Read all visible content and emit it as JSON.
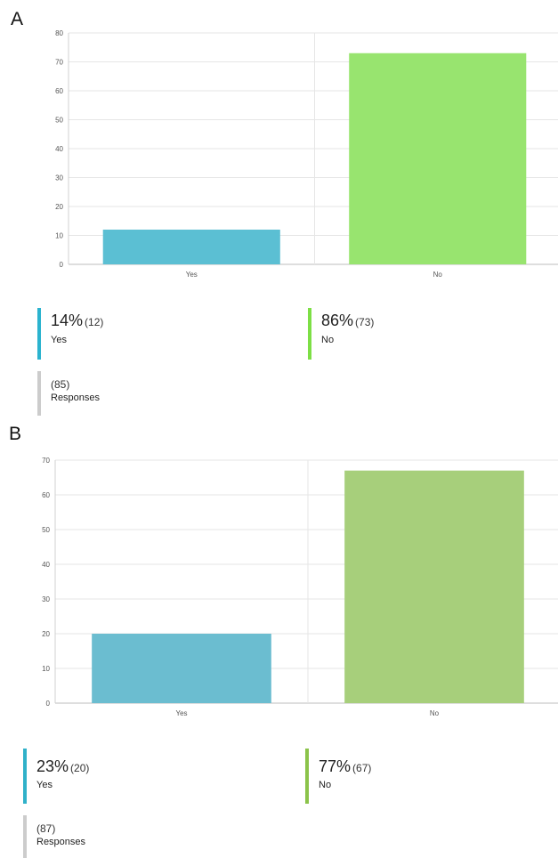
{
  "panels": [
    {
      "letter": "A",
      "stats": [
        {
          "percent": "14%",
          "count": "(12)",
          "label": "Yes",
          "color": "#2bb3cf"
        },
        {
          "percent": "86%",
          "count": "(73)",
          "label": "No",
          "color": "#7ddf45"
        }
      ],
      "responses": {
        "count": "(85)",
        "label": "Responses",
        "color": "#cccccc"
      }
    },
    {
      "letter": "B",
      "stats": [
        {
          "percent": "23%",
          "count": "(20)",
          "label": "Yes",
          "color": "#2fb1c9"
        },
        {
          "percent": "77%",
          "count": "(67)",
          "label": "No",
          "color": "#8bc34a"
        }
      ],
      "responses": {
        "count": "(87)",
        "label": "Responses",
        "color": "#cccccc"
      }
    }
  ],
  "chart_data": [
    {
      "type": "bar",
      "categories": [
        "Yes",
        "No"
      ],
      "values": [
        12,
        73
      ],
      "colors": [
        "#5bbfd3",
        "#98e46f"
      ],
      "ylim": [
        0,
        80
      ],
      "yticks": [
        0,
        10,
        20,
        30,
        40,
        50,
        60,
        70,
        80
      ],
      "grid": true
    },
    {
      "type": "bar",
      "categories": [
        "Yes",
        "No"
      ],
      "values": [
        20,
        67
      ],
      "colors": [
        "#6bbdd0",
        "#a7cf7b"
      ],
      "ylim": [
        0,
        70
      ],
      "yticks": [
        0,
        10,
        20,
        30,
        40,
        50,
        60,
        70
      ],
      "grid": true
    }
  ]
}
